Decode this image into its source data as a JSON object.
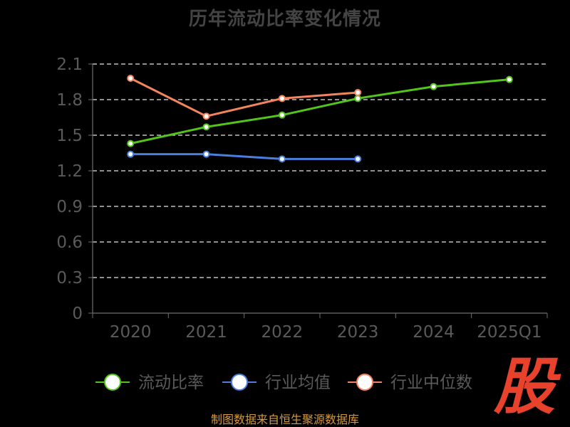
{
  "chart_data": {
    "type": "line",
    "title": "历年流动比率变化情况",
    "categories": [
      "2020",
      "2021",
      "2022",
      "2023",
      "2024",
      "2025Q1"
    ],
    "y_ticks": [
      "0",
      "0.3",
      "0.6",
      "0.9",
      "1.2",
      "1.5",
      "1.8",
      "2.1"
    ],
    "ylim": [
      0,
      2.1
    ],
    "grid": "horizontal-dashed",
    "legend_position": "bottom",
    "series": [
      {
        "name": "流动比率",
        "color": "#52c41a",
        "values": [
          1.43,
          1.57,
          1.67,
          1.81,
          1.91,
          1.97
        ]
      },
      {
        "name": "行业均值",
        "color": "#4a7fe0",
        "values": [
          1.34,
          1.34,
          1.3,
          1.3,
          null,
          null
        ]
      },
      {
        "name": "行业中位数",
        "color": "#f4845f",
        "values": [
          1.98,
          1.66,
          1.81,
          1.86,
          null,
          null
        ]
      }
    ]
  },
  "footer": {
    "source": "制图数据来自恒生聚源数据库"
  },
  "brand": {
    "logo_text": "股",
    "color": "#e8412c"
  }
}
